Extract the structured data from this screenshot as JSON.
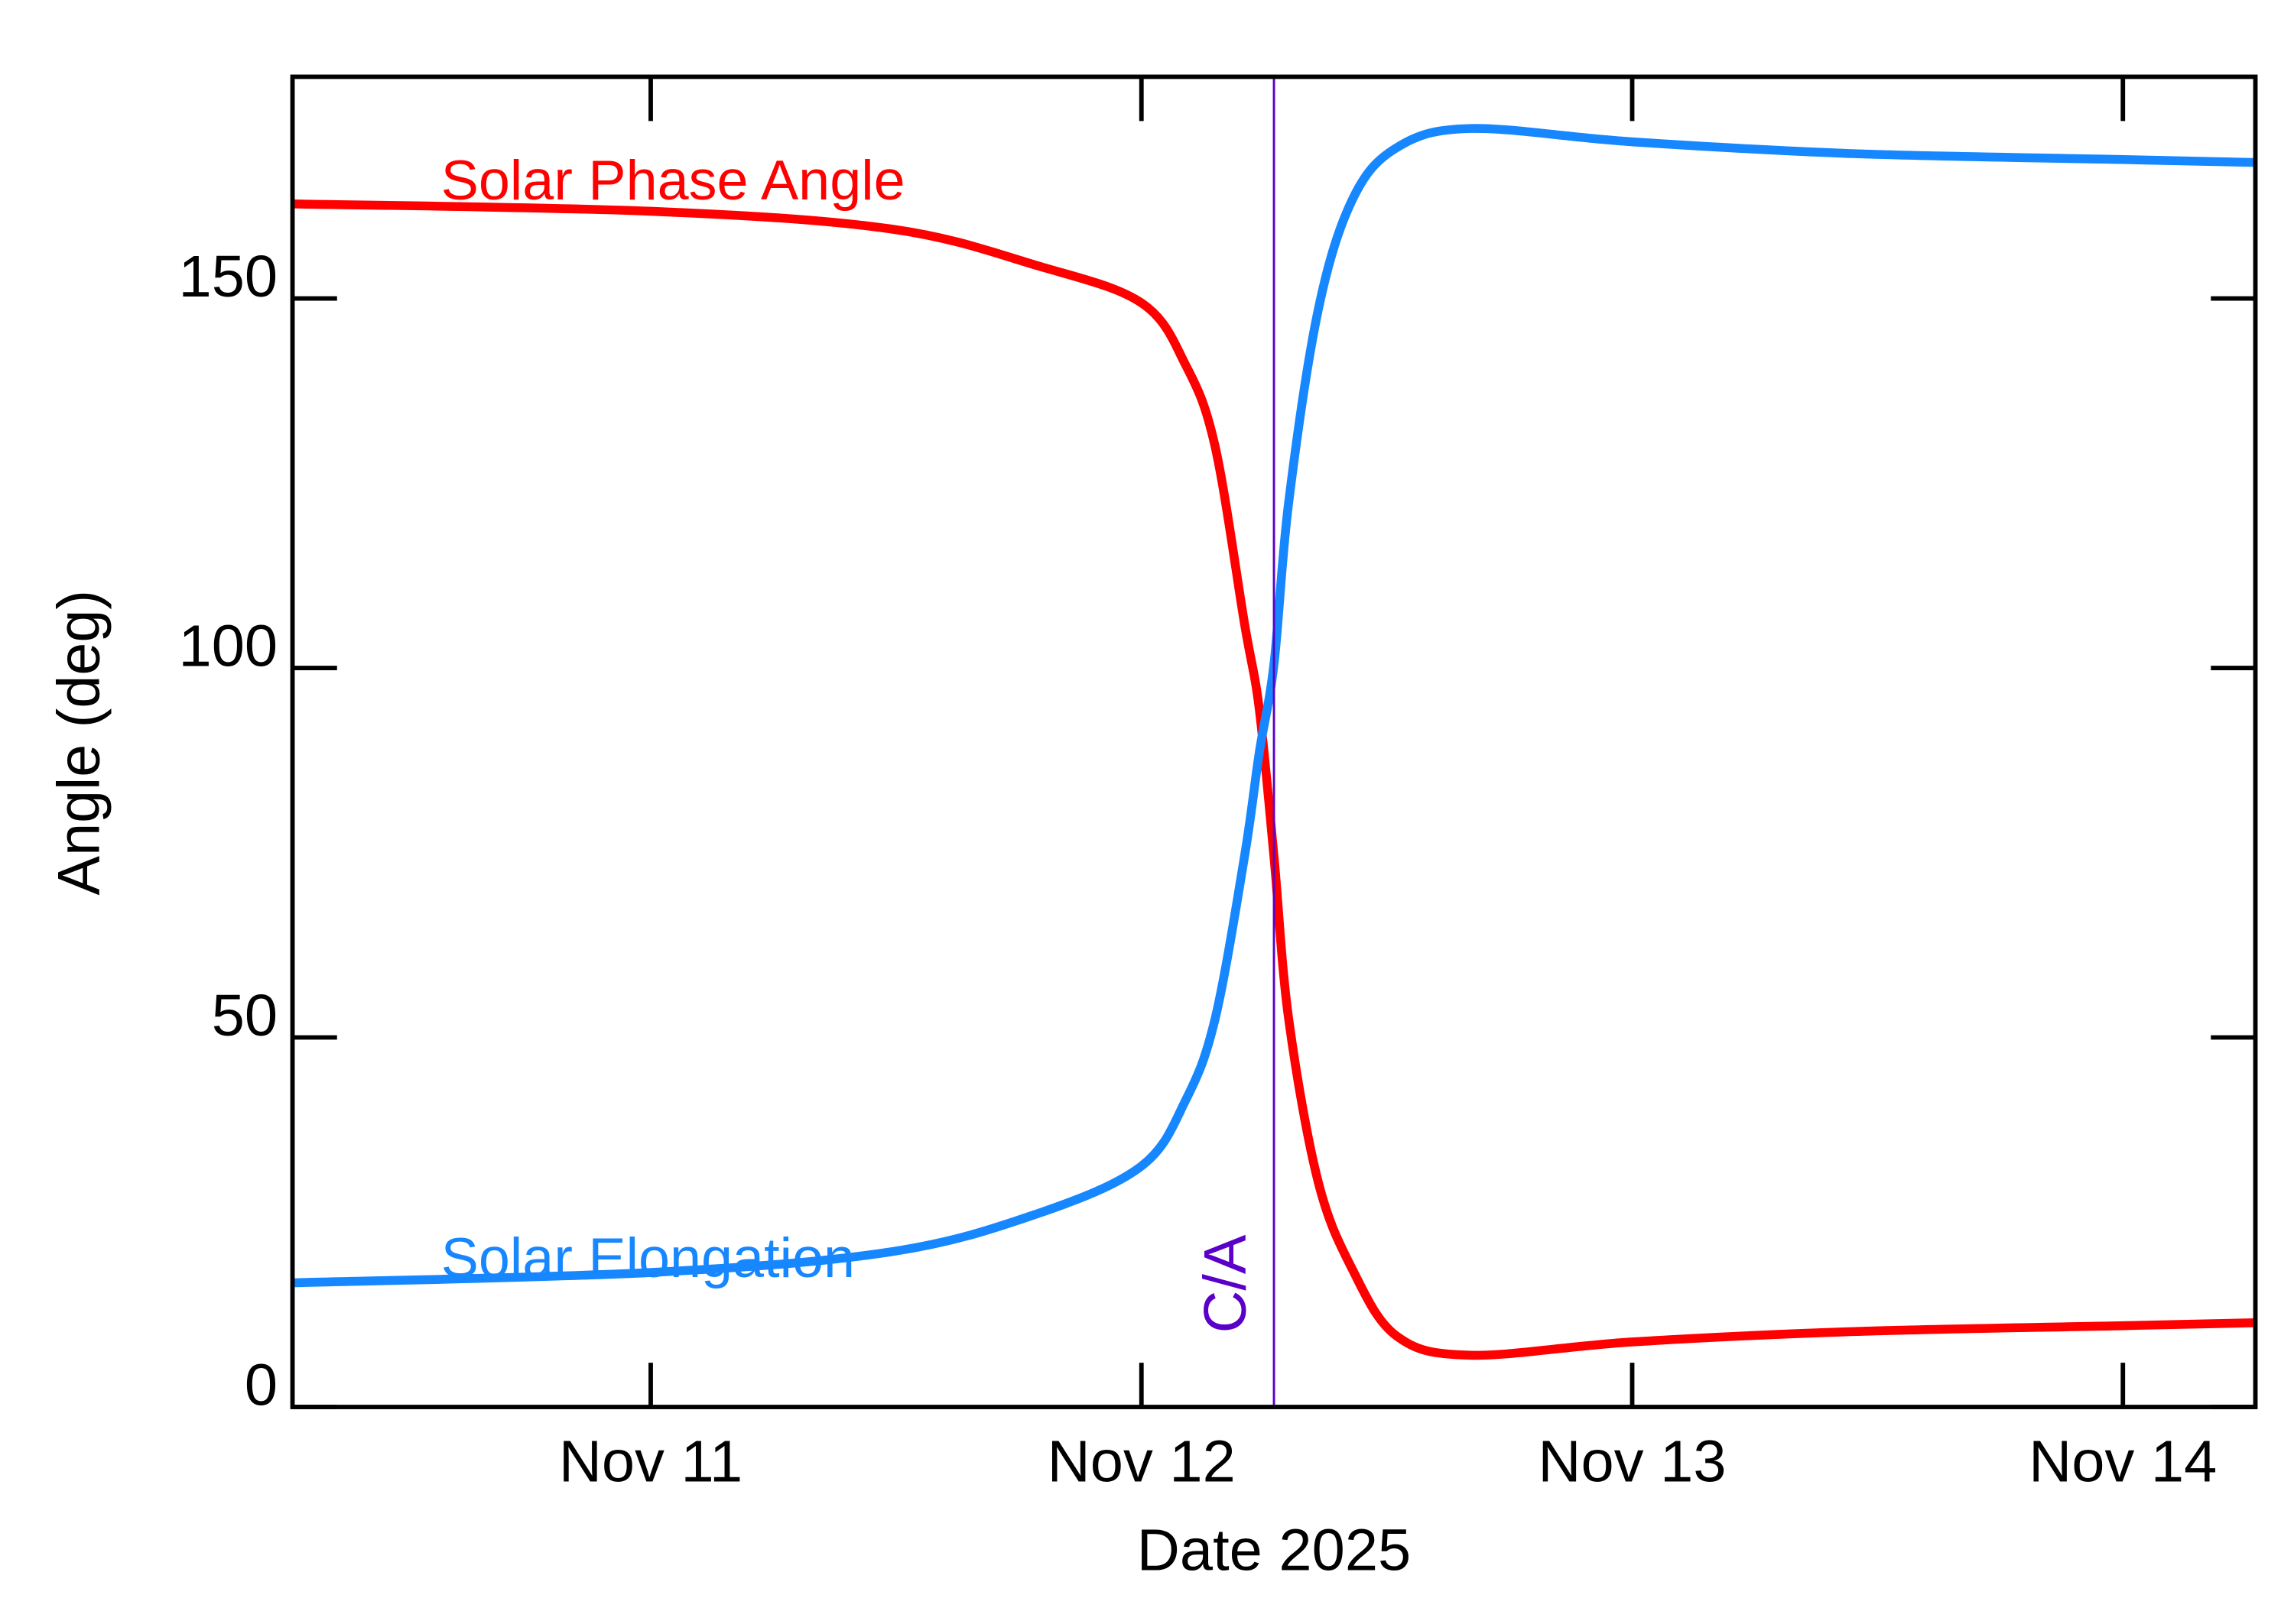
{
  "chart_data": {
    "type": "line",
    "x_label": "Date 2025",
    "y_label": "Angle (deg)",
    "xlim": [
      10.27,
      14.27
    ],
    "ylim": [
      0,
      180
    ],
    "xticks": [
      {
        "value": 11,
        "label": "Nov 11"
      },
      {
        "value": 12,
        "label": "Nov 12"
      },
      {
        "value": 13,
        "label": "Nov 13"
      },
      {
        "value": 14,
        "label": "Nov 14"
      }
    ],
    "yticks": [
      0,
      50,
      100,
      150
    ],
    "x": [
      10.27,
      11.0,
      11.49,
      11.79,
      12.0,
      12.09,
      12.15,
      12.21,
      12.24,
      12.27,
      12.3,
      12.36,
      12.43,
      12.52,
      12.67,
      13.0,
      13.45,
      14.0,
      14.27
    ],
    "series": [
      {
        "name": "Solar Phase Angle",
        "color": "#ff0000",
        "values": [
          162.8,
          161.8,
          159.4,
          154.4,
          149.4,
          141,
          130,
          106,
          94.5,
          74.5,
          52.5,
          30.5,
          18.6,
          9.6,
          7,
          8.8,
          10.2,
          11,
          11.4
        ]
      },
      {
        "name": "Solar Elongation",
        "color": "#1787ff",
        "values": [
          16.8,
          18.2,
          21,
          26.2,
          32.6,
          41.5,
          52.5,
          74.5,
          88.5,
          100.5,
          122.4,
          148.4,
          163.4,
          170.4,
          173,
          171.2,
          169.6,
          168.8,
          168.4
        ]
      }
    ],
    "annotations": [
      {
        "text": "C/A",
        "x": 12.27,
        "color": "#5a00c8"
      }
    ]
  }
}
